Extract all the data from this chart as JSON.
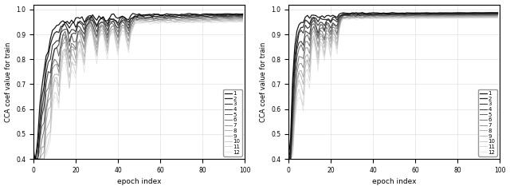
{
  "n_lines": 12,
  "n_epochs": 100,
  "ylabel": "CCA coef value for train",
  "xlabel": "epoch index",
  "ylim": [
    0.4,
    1.02
  ],
  "yticks": [
    0.4,
    0.5,
    0.6,
    0.7,
    0.8,
    0.9,
    1.0
  ],
  "xticks": [
    0,
    20,
    40,
    60,
    80,
    100
  ],
  "legend_labels": [
    "1",
    "2",
    "3",
    "4",
    "5",
    "6",
    "7",
    "8",
    "9",
    "10",
    "11",
    "12"
  ],
  "gray_shades": [
    "#000000",
    "#111111",
    "#222222",
    "#333333",
    "#555555",
    "#666666",
    "#888888",
    "#999999",
    "#aaaaaa",
    "#bbbbbb",
    "#cccccc",
    "#dddddd"
  ],
  "line_widths": [
    0.9,
    0.9,
    0.8,
    0.8,
    0.7,
    0.7,
    0.7,
    0.6,
    0.6,
    0.6,
    0.6,
    0.5
  ]
}
